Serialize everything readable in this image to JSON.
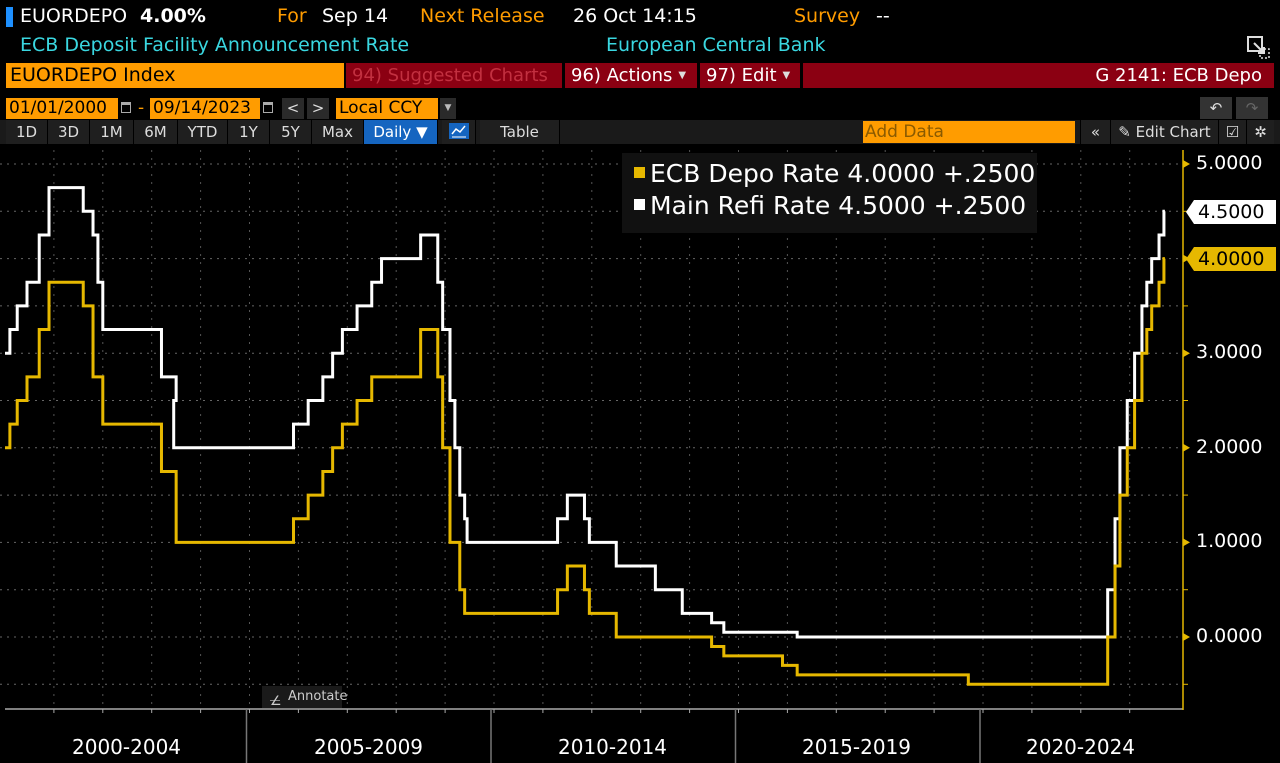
{
  "header": {
    "ticker": "EUORDEPO",
    "value": "4.00%",
    "for_label": "For",
    "for_date": "Sep 14",
    "next_release_label": "Next Release",
    "next_release_value": "26 Oct 14:15",
    "survey_label": "Survey",
    "survey_value": "--",
    "description": "ECB Deposit Facility Announcement Rate",
    "source": "European Central Bank"
  },
  "toolbar": {
    "security": "EUORDEPO Index",
    "suggested_charts": "94) Suggested Charts",
    "actions": "96) Actions",
    "edit": "97) Edit",
    "chart_id": "G 2141: ECB Depo",
    "start_date": "01/01/2000",
    "date_separator": "-",
    "end_date": "09/14/2023",
    "prev": "<",
    "next": ">",
    "currency": "Local CCY",
    "periods": [
      "1D",
      "3D",
      "1M",
      "6M",
      "YTD",
      "1Y",
      "5Y",
      "Max"
    ],
    "frequency": "Daily ▼",
    "table": "Table",
    "add_data_placeholder": "Add Data",
    "collapse": "«",
    "edit_chart": "Edit Chart",
    "undo": "↶",
    "redo": "↷",
    "annotate": "Annotate"
  },
  "colors": {
    "depo": "#e6b800",
    "refi": "#ffffff",
    "accent_orange": "#ff9c00",
    "accent_red": "#8b0012",
    "header_cyan": "#3ad7e0"
  },
  "chart_data": {
    "type": "line",
    "title": "G 2141: ECB Depo",
    "xlabel": "",
    "ylabel": "",
    "ylim": [
      -0.6,
      5.1
    ],
    "yticks": [
      "5.0000",
      "4.0000",
      "3.0000",
      "2.0000",
      "1.0000",
      "0.0000"
    ],
    "xtick_labels": [
      "2000-2004",
      "2005-2009",
      "2010-2014",
      "2015-2019",
      "2020-2024"
    ],
    "grid": true,
    "legend_position": "top-right inside",
    "legend": [
      {
        "name": "ECB Depo Rate",
        "last": "4.0000",
        "change": "+.2500"
      },
      {
        "name": "Main Refi Rate",
        "last": "4.5000",
        "change": "+.2500"
      }
    ],
    "last_value_tags": [
      {
        "series": "Main Refi Rate",
        "value": "4.5000"
      },
      {
        "series": "ECB Depo Rate",
        "value": "4.0000"
      }
    ],
    "series": [
      {
        "name": "ECB Depo Rate",
        "color": "#e6b800",
        "steps": [
          [
            2000.0,
            2.0
          ],
          [
            2000.1,
            2.25
          ],
          [
            2000.25,
            2.5
          ],
          [
            2000.45,
            2.75
          ],
          [
            2000.7,
            3.25
          ],
          [
            2000.9,
            3.75
          ],
          [
            2001.6,
            3.5
          ],
          [
            2001.8,
            2.75
          ],
          [
            2002.0,
            2.25
          ],
          [
            2003.2,
            1.75
          ],
          [
            2003.5,
            1.0
          ],
          [
            2005.9,
            1.25
          ],
          [
            2006.2,
            1.5
          ],
          [
            2006.5,
            1.75
          ],
          [
            2006.7,
            2.0
          ],
          [
            2006.9,
            2.25
          ],
          [
            2007.2,
            2.5
          ],
          [
            2007.5,
            2.75
          ],
          [
            2008.5,
            3.25
          ],
          [
            2008.85,
            2.75
          ],
          [
            2008.95,
            2.0
          ],
          [
            2009.1,
            1.0
          ],
          [
            2009.3,
            0.5
          ],
          [
            2009.4,
            0.25
          ],
          [
            2011.3,
            0.5
          ],
          [
            2011.5,
            0.75
          ],
          [
            2011.85,
            0.5
          ],
          [
            2011.95,
            0.25
          ],
          [
            2012.5,
            0.0
          ],
          [
            2014.45,
            -0.1
          ],
          [
            2014.7,
            -0.2
          ],
          [
            2015.9,
            -0.3
          ],
          [
            2016.2,
            -0.4
          ],
          [
            2019.7,
            -0.5
          ],
          [
            2022.55,
            0.0
          ],
          [
            2022.7,
            0.75
          ],
          [
            2022.8,
            1.5
          ],
          [
            2022.95,
            2.0
          ],
          [
            2023.1,
            2.5
          ],
          [
            2023.25,
            3.0
          ],
          [
            2023.35,
            3.25
          ],
          [
            2023.45,
            3.5
          ],
          [
            2023.6,
            3.75
          ],
          [
            2023.7,
            4.0
          ]
        ]
      },
      {
        "name": "Main Refi Rate",
        "color": "#ffffff",
        "steps": [
          [
            2000.0,
            3.0
          ],
          [
            2000.1,
            3.25
          ],
          [
            2000.25,
            3.5
          ],
          [
            2000.45,
            3.75
          ],
          [
            2000.7,
            4.25
          ],
          [
            2000.9,
            4.75
          ],
          [
            2001.6,
            4.5
          ],
          [
            2001.8,
            4.25
          ],
          [
            2001.9,
            3.75
          ],
          [
            2002.0,
            3.25
          ],
          [
            2003.2,
            2.75
          ],
          [
            2003.5,
            2.5
          ],
          [
            2003.45,
            2.0
          ],
          [
            2005.9,
            2.25
          ],
          [
            2006.2,
            2.5
          ],
          [
            2006.5,
            2.75
          ],
          [
            2006.7,
            3.0
          ],
          [
            2006.9,
            3.25
          ],
          [
            2007.2,
            3.5
          ],
          [
            2007.5,
            3.75
          ],
          [
            2007.7,
            4.0
          ],
          [
            2008.5,
            4.25
          ],
          [
            2008.85,
            3.75
          ],
          [
            2008.95,
            3.25
          ],
          [
            2009.1,
            2.5
          ],
          [
            2009.2,
            2.0
          ],
          [
            2009.3,
            1.5
          ],
          [
            2009.4,
            1.25
          ],
          [
            2009.45,
            1.0
          ],
          [
            2011.3,
            1.25
          ],
          [
            2011.5,
            1.5
          ],
          [
            2011.85,
            1.25
          ],
          [
            2011.95,
            1.0
          ],
          [
            2012.5,
            0.75
          ],
          [
            2013.3,
            0.5
          ],
          [
            2013.85,
            0.25
          ],
          [
            2014.45,
            0.15
          ],
          [
            2014.7,
            0.05
          ],
          [
            2016.2,
            0.0
          ],
          [
            2022.55,
            0.5
          ],
          [
            2022.7,
            1.25
          ],
          [
            2022.8,
            2.0
          ],
          [
            2022.95,
            2.5
          ],
          [
            2023.1,
            3.0
          ],
          [
            2023.25,
            3.5
          ],
          [
            2023.35,
            3.75
          ],
          [
            2023.45,
            4.0
          ],
          [
            2023.6,
            4.25
          ],
          [
            2023.7,
            4.5
          ]
        ]
      }
    ]
  }
}
